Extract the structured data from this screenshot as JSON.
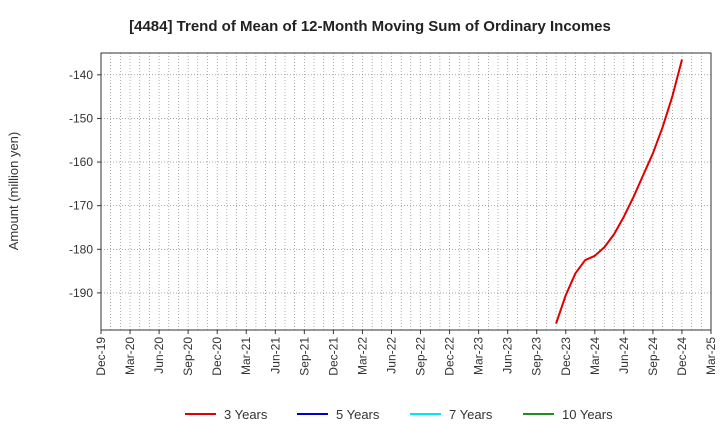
{
  "chart_data": {
    "type": "line",
    "title": "[4484]  Trend of Mean of 12-Month Moving Sum of Ordinary Incomes",
    "xlabel": "",
    "ylabel": "Amount (million yen)",
    "ylim": [
      -198.5,
      -135
    ],
    "yticks": [
      -140,
      -150,
      -160,
      -170,
      -180,
      -190
    ],
    "x_tick_labels": [
      "Dec-19",
      "Mar-20",
      "Jun-20",
      "Sep-20",
      "Dec-20",
      "Mar-21",
      "Jun-21",
      "Sep-21",
      "Dec-21",
      "Mar-22",
      "Jun-22",
      "Sep-22",
      "Dec-22",
      "Mar-23",
      "Jun-23",
      "Sep-23",
      "Dec-23",
      "Mar-24",
      "Jun-24",
      "Sep-24",
      "Dec-24",
      "Mar-25"
    ],
    "grid": true,
    "legend_position": "bottom",
    "series": [
      {
        "name": "3 Years",
        "color": "#e00000",
        "points": [
          {
            "x": "Nov-23",
            "y": -197
          },
          {
            "x": "Dec-23",
            "y": -190.5
          },
          {
            "x": "Jan-24",
            "y": -185.5
          },
          {
            "x": "Feb-24",
            "y": -182.5
          },
          {
            "x": "Mar-24",
            "y": -181.5
          },
          {
            "x": "Apr-24",
            "y": -179.5
          },
          {
            "x": "May-24",
            "y": -176.5
          },
          {
            "x": "Jun-24",
            "y": -172.5
          },
          {
            "x": "Jul-24",
            "y": -168
          },
          {
            "x": "Aug-24",
            "y": -163
          },
          {
            "x": "Sep-24",
            "y": -158
          },
          {
            "x": "Oct-24",
            "y": -152
          },
          {
            "x": "Nov-24",
            "y": -145
          },
          {
            "x": "Dec-24",
            "y": -136.5
          }
        ]
      },
      {
        "name": "5 Years",
        "color": "#0000cc",
        "points": []
      },
      {
        "name": "7 Years",
        "color": "#00e5ee",
        "points": []
      },
      {
        "name": "10 Years",
        "color": "#228b22",
        "points": []
      }
    ]
  }
}
